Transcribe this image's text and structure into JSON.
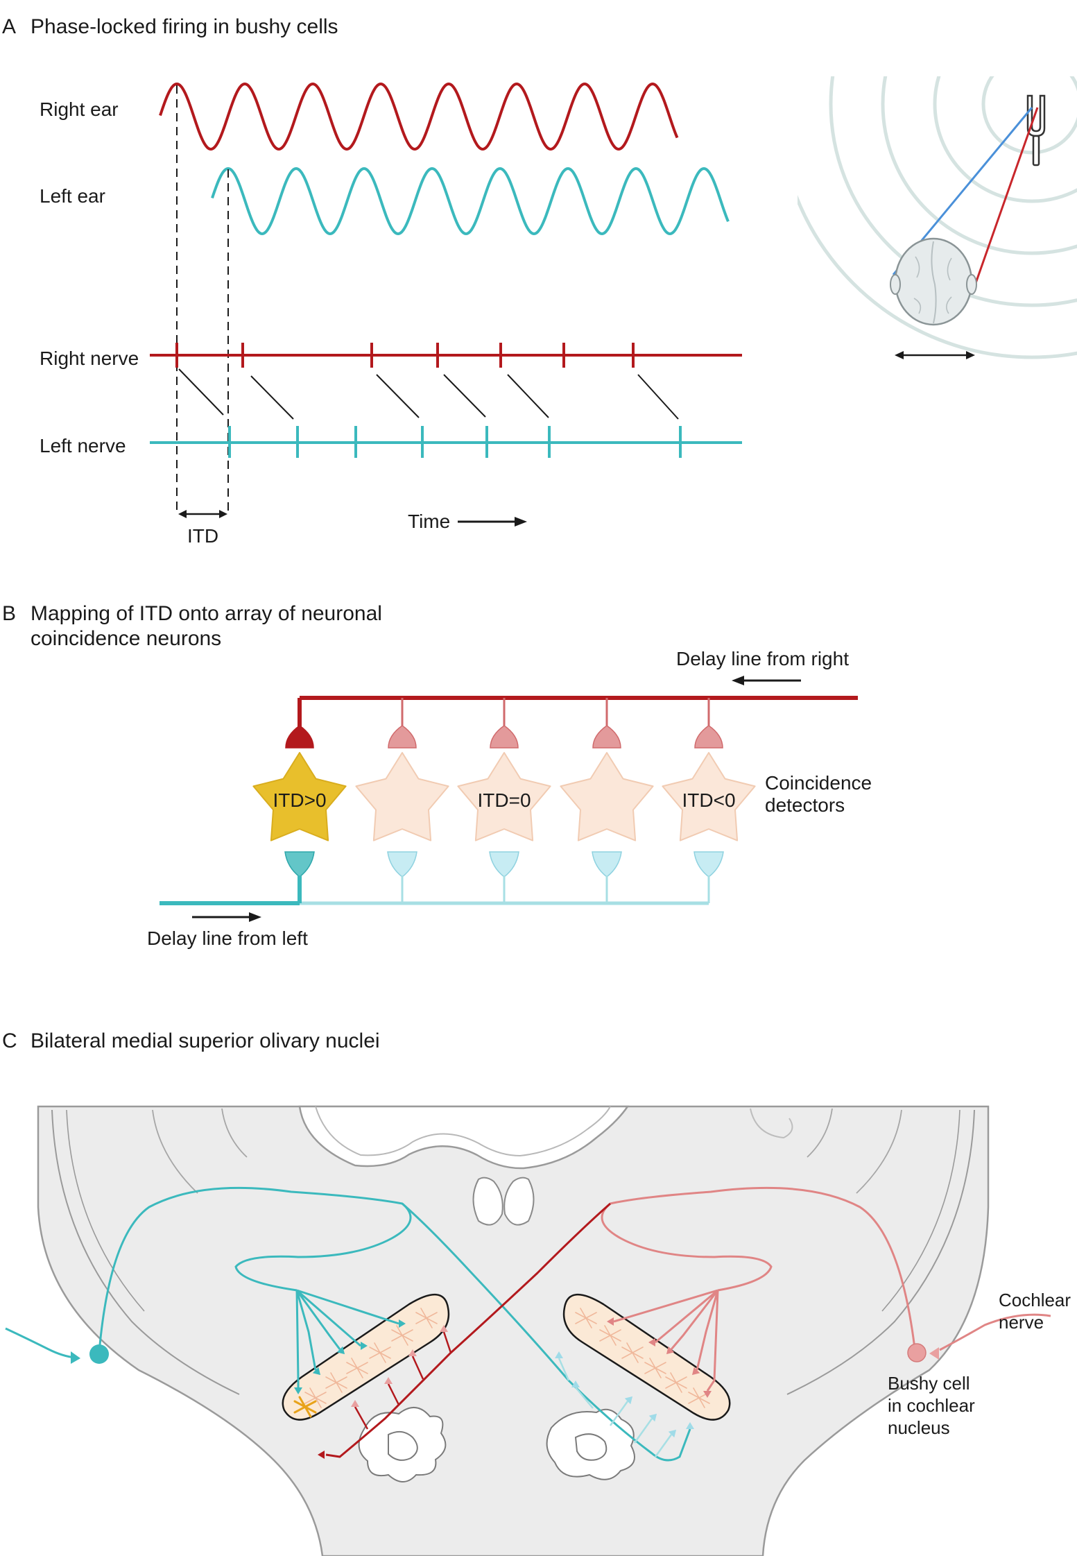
{
  "panel_a": {
    "letter": "A",
    "title": "Phase-locked firing in bushy cells",
    "right_ear": "Right ear",
    "left_ear": "Left ear",
    "right_nerve": "Right nerve",
    "left_nerve": "Left nerve",
    "itd": "ITD",
    "time": "Time"
  },
  "panel_b": {
    "letter": "B",
    "title_line1": "Mapping of ITD onto array of neuronal",
    "title_line2": "coincidence neurons",
    "delay_right": "Delay line from right",
    "delay_left": "Delay line from left",
    "coincidence_line1": "Coincidence",
    "coincidence_line2": "detectors",
    "neurons": [
      "ITD>0",
      "",
      "ITD=0",
      "",
      "ITD<0"
    ]
  },
  "panel_c": {
    "letter": "C",
    "title": "Bilateral medial superior olivary nuclei",
    "cochlear_line1": "Cochlear",
    "cochlear_line2": "nerve",
    "bushy_line1": "Bushy cell",
    "bushy_line2": "in cochlear",
    "bushy_line3": "nucleus"
  },
  "colors": {
    "right": "#b3191d",
    "right_light": "#e39a9b",
    "left": "#3bb9bd",
    "left_light": "#a7dfe4",
    "active_neuron": "#e8bf2c",
    "inactive_neuron": "#fbe7d9",
    "ring": "#d5e3e1",
    "brain": "#ececec"
  }
}
